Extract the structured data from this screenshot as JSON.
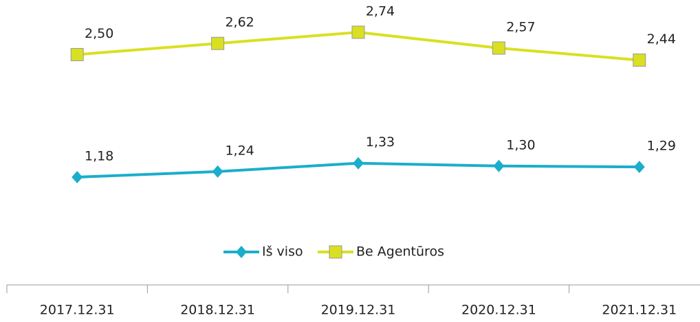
{
  "chart_data": {
    "type": "line",
    "categories": [
      "2017.12.31",
      "2018.12.31",
      "2019.12.31",
      "2020.12.31",
      "2021.12.31"
    ],
    "series": [
      {
        "name": "Iš viso",
        "color": "#1aaecb",
        "marker": "diamond",
        "values": [
          1.18,
          1.24,
          1.33,
          1.3,
          1.29
        ],
        "value_labels": [
          "1,18",
          "1,24",
          "1,33",
          "1,30",
          "1,29"
        ]
      },
      {
        "name": "Be Agentūros",
        "color": "#d9e021",
        "marker": "square",
        "values": [
          2.5,
          2.62,
          2.74,
          2.57,
          2.44
        ],
        "value_labels": [
          "2,50",
          "2,62",
          "2,74",
          "2,57",
          "2,44"
        ]
      }
    ],
    "legend": "bottom"
  }
}
